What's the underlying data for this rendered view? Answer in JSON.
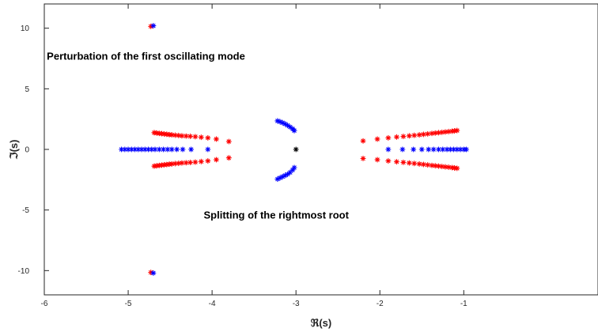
{
  "chart_data": {
    "type": "scatter",
    "title": "",
    "xlabel": "ℜ(s)",
    "ylabel": "ℑ(s)",
    "xlim": [
      -6,
      0.6
    ],
    "ylim": [
      -12,
      12
    ],
    "xticks": [
      -6,
      -5,
      -4,
      -3,
      -2,
      -1
    ],
    "yticks": [
      -10,
      -5,
      0,
      5,
      10
    ],
    "grid": false,
    "annotations": [
      {
        "text": "Perturbation of the first oscillating mode",
        "x": -5.97,
        "y": 7.4
      },
      {
        "text": "Splitting of the rightmost root",
        "x": -4.1,
        "y": -5.7
      }
    ],
    "series": [
      {
        "color": "#ff0000",
        "marker": "asterisk",
        "points": [
          [
            -4.73,
            10.15
          ],
          [
            -4.73,
            -10.15
          ],
          [
            -3.8,
            0.65
          ],
          [
            -3.8,
            -0.7
          ],
          [
            -3.95,
            0.85
          ],
          [
            -3.95,
            -0.85
          ],
          [
            -4.05,
            0.95
          ],
          [
            -4.05,
            -0.95
          ],
          [
            -4.13,
            1.0
          ],
          [
            -4.13,
            -1.0
          ],
          [
            -4.2,
            1.05
          ],
          [
            -4.2,
            -1.05
          ],
          [
            -4.26,
            1.08
          ],
          [
            -4.26,
            -1.08
          ],
          [
            -4.31,
            1.1
          ],
          [
            -4.31,
            -1.1
          ],
          [
            -4.36,
            1.12
          ],
          [
            -4.36,
            -1.12
          ],
          [
            -4.4,
            1.15
          ],
          [
            -4.4,
            -1.15
          ],
          [
            -4.44,
            1.17
          ],
          [
            -4.44,
            -1.17
          ],
          [
            -4.48,
            1.2
          ],
          [
            -4.48,
            -1.2
          ],
          [
            -4.51,
            1.22
          ],
          [
            -4.51,
            -1.22
          ],
          [
            -4.54,
            1.25
          ],
          [
            -4.54,
            -1.25
          ],
          [
            -4.57,
            1.27
          ],
          [
            -4.57,
            -1.27
          ],
          [
            -4.6,
            1.3
          ],
          [
            -4.6,
            -1.3
          ],
          [
            -4.63,
            1.32
          ],
          [
            -4.63,
            -1.32
          ],
          [
            -4.66,
            1.35
          ],
          [
            -4.66,
            -1.35
          ],
          [
            -4.69,
            1.38
          ],
          [
            -4.69,
            -1.38
          ],
          [
            -2.2,
            0.7
          ],
          [
            -2.2,
            -0.75
          ],
          [
            -2.03,
            0.85
          ],
          [
            -2.03,
            -0.85
          ],
          [
            -1.9,
            0.95
          ],
          [
            -1.9,
            -0.95
          ],
          [
            -1.8,
            1.02
          ],
          [
            -1.8,
            -1.02
          ],
          [
            -1.72,
            1.07
          ],
          [
            -1.72,
            -1.07
          ],
          [
            -1.65,
            1.12
          ],
          [
            -1.65,
            -1.12
          ],
          [
            -1.59,
            1.16
          ],
          [
            -1.59,
            -1.16
          ],
          [
            -1.53,
            1.2
          ],
          [
            -1.53,
            -1.2
          ],
          [
            -1.48,
            1.24
          ],
          [
            -1.48,
            -1.24
          ],
          [
            -1.43,
            1.28
          ],
          [
            -1.43,
            -1.28
          ],
          [
            -1.38,
            1.32
          ],
          [
            -1.38,
            -1.32
          ],
          [
            -1.34,
            1.35
          ],
          [
            -1.34,
            -1.35
          ],
          [
            -1.3,
            1.38
          ],
          [
            -1.3,
            -1.38
          ],
          [
            -1.26,
            1.41
          ],
          [
            -1.26,
            -1.41
          ],
          [
            -1.22,
            1.44
          ],
          [
            -1.22,
            -1.44
          ],
          [
            -1.18,
            1.47
          ],
          [
            -1.18,
            -1.47
          ],
          [
            -1.14,
            1.5
          ],
          [
            -1.14,
            -1.5
          ],
          [
            -1.11,
            1.53
          ],
          [
            -1.11,
            -1.53
          ],
          [
            -1.08,
            1.56
          ],
          [
            -1.08,
            -1.56
          ]
        ]
      },
      {
        "color": "#0000ff",
        "marker": "asterisk",
        "points": [
          [
            -4.7,
            10.2
          ],
          [
            -4.7,
            -10.2
          ],
          [
            -5.08,
            0
          ],
          [
            -5.04,
            0
          ],
          [
            -5.0,
            0
          ],
          [
            -4.96,
            0
          ],
          [
            -4.92,
            0
          ],
          [
            -4.88,
            0
          ],
          [
            -4.84,
            0
          ],
          [
            -4.8,
            0
          ],
          [
            -4.76,
            0
          ],
          [
            -4.72,
            0
          ],
          [
            -4.68,
            0
          ],
          [
            -4.63,
            0
          ],
          [
            -4.58,
            0
          ],
          [
            -4.53,
            0
          ],
          [
            -4.48,
            0
          ],
          [
            -4.42,
            0
          ],
          [
            -4.35,
            0
          ],
          [
            -4.25,
            0
          ],
          [
            -4.05,
            0
          ],
          [
            -1.9,
            0
          ],
          [
            -1.73,
            0
          ],
          [
            -1.6,
            0
          ],
          [
            -1.5,
            0
          ],
          [
            -1.42,
            0
          ],
          [
            -1.36,
            0
          ],
          [
            -1.3,
            0
          ],
          [
            -1.25,
            0
          ],
          [
            -1.2,
            0
          ],
          [
            -1.16,
            0
          ],
          [
            -1.12,
            0
          ],
          [
            -1.08,
            0
          ],
          [
            -1.04,
            0
          ],
          [
            -1.0,
            0
          ],
          [
            -0.97,
            0
          ],
          [
            -3.22,
            2.35
          ],
          [
            -3.19,
            2.28
          ],
          [
            -3.16,
            2.2
          ],
          [
            -3.13,
            2.1
          ],
          [
            -3.1,
            1.98
          ],
          [
            -3.07,
            1.85
          ],
          [
            -3.04,
            1.7
          ],
          [
            -3.02,
            1.55
          ],
          [
            -3.22,
            -2.45
          ],
          [
            -3.19,
            -2.35
          ],
          [
            -3.16,
            -2.25
          ],
          [
            -3.13,
            -2.15
          ],
          [
            -3.1,
            -2.05
          ],
          [
            -3.07,
            -1.9
          ],
          [
            -3.04,
            -1.7
          ],
          [
            -3.02,
            -1.5
          ]
        ]
      },
      {
        "color": "#000000",
        "marker": "asterisk",
        "points": [
          [
            -3.0,
            0.0
          ]
        ]
      }
    ]
  }
}
